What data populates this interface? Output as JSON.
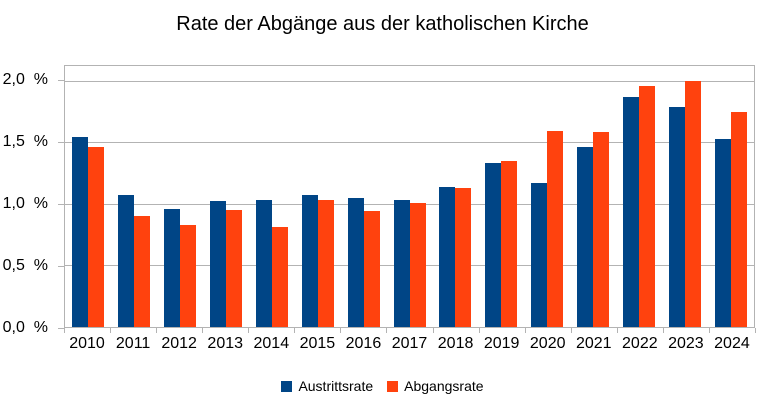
{
  "chart_data": {
    "type": "bar",
    "title": "Rate der Abgänge aus der katholischen Kirche",
    "categories": [
      "2010",
      "2011",
      "2012",
      "2013",
      "2014",
      "2015",
      "2016",
      "2017",
      "2018",
      "2019",
      "2020",
      "2021",
      "2022",
      "2023",
      "2024"
    ],
    "series": [
      {
        "name": "Austrittsrate",
        "color": "#004586",
        "values": [
          1.54,
          1.07,
          0.96,
          1.02,
          1.03,
          1.07,
          1.05,
          1.03,
          1.14,
          1.33,
          1.17,
          1.46,
          1.87,
          1.79,
          1.53
        ]
      },
      {
        "name": "Abgangsrate",
        "color": "#FF420E",
        "values": [
          1.46,
          0.9,
          0.83,
          0.95,
          0.81,
          1.03,
          0.94,
          1.01,
          1.13,
          1.35,
          1.59,
          1.58,
          1.96,
          2.0,
          1.75
        ]
      }
    ],
    "xlabel": "",
    "ylabel": "",
    "ylim": [
      0,
      2.12
    ],
    "yticks": [
      0,
      0.5,
      1.0,
      1.5,
      2.0
    ],
    "ytick_labels": [
      "0,0  %",
      "0,5  %",
      "1,0  %",
      "1,5  %",
      "2,0  %"
    ],
    "grid": true,
    "legend_position": "bottom",
    "colors": {
      "grid": "#B3B3B3",
      "axis": "#B3B3B3",
      "background": "#FFFFFF",
      "text": "#000000"
    }
  }
}
